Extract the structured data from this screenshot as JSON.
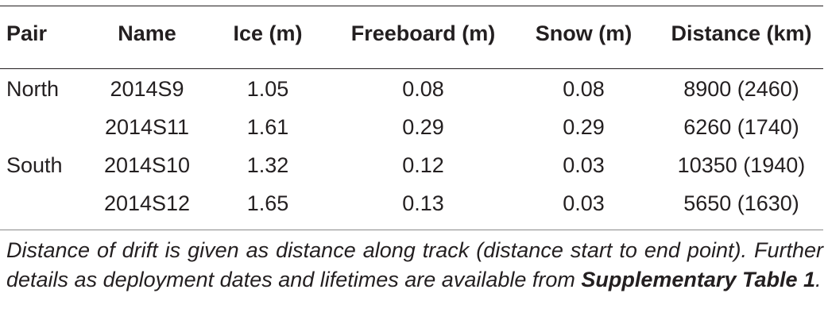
{
  "table": {
    "headers": {
      "pair": "Pair",
      "name": "Name",
      "ice": "Ice (m)",
      "freeboard": "Freeboard (m)",
      "snow": "Snow (m)",
      "distance": "Distance (km)"
    },
    "rows": [
      {
        "pair": "North",
        "name": "2014S9",
        "ice": "1.05",
        "freeboard": "0.08",
        "snow": "0.08",
        "distance": "8900 (2460)"
      },
      {
        "pair": "",
        "name": "2014S11",
        "ice": "1.61",
        "freeboard": "0.29",
        "snow": "0.29",
        "distance": "6260 (1740)"
      },
      {
        "pair": "South",
        "name": "2014S10",
        "ice": "1.32",
        "freeboard": "0.12",
        "snow": "0.03",
        "distance": "10350 (1940)"
      },
      {
        "pair": "",
        "name": "2014S12",
        "ice": "1.65",
        "freeboard": "0.13",
        "snow": "0.03",
        "distance": "5650 (1630)"
      }
    ]
  },
  "footnote": {
    "text_before": "Distance of drift is given as distance along track (distance start to end point). Further details as deployment dates and lifetimes are available from",
    "reference": "Supplementary Table 1",
    "text_after": "."
  }
}
